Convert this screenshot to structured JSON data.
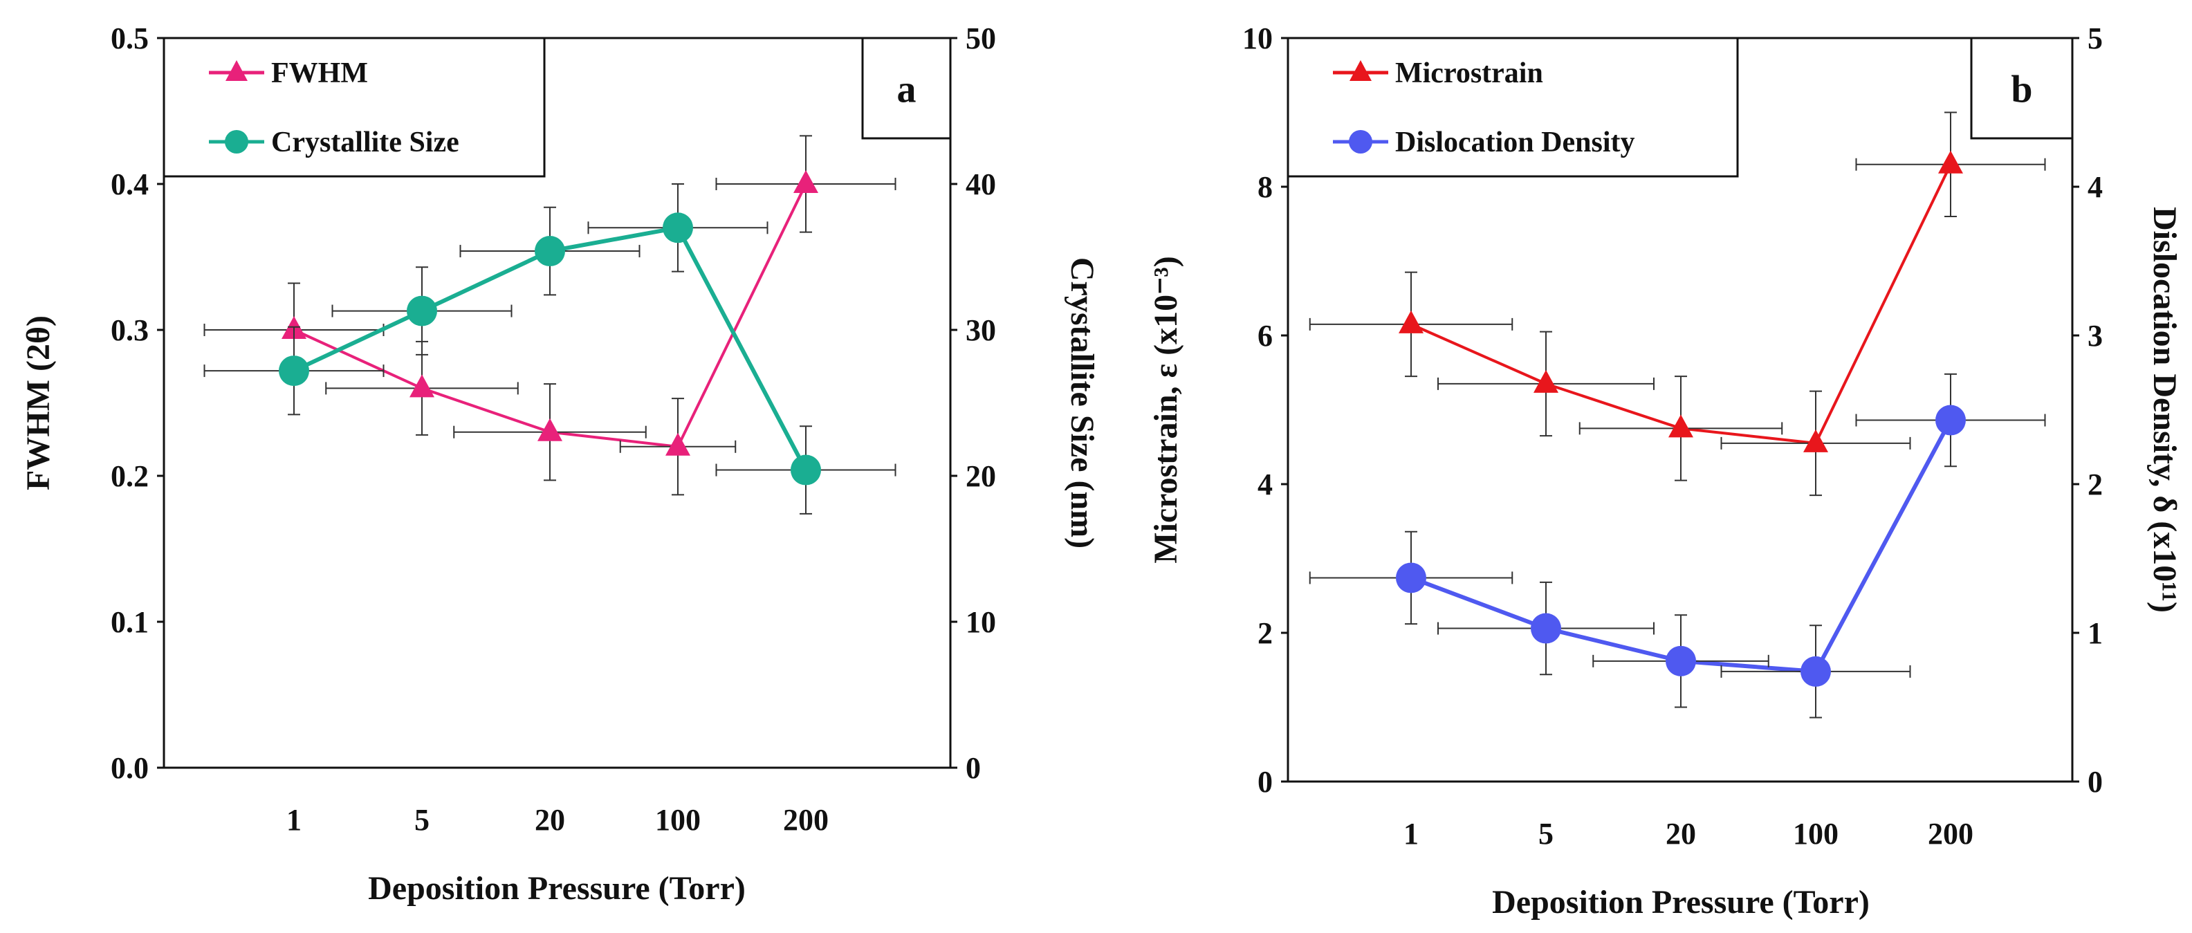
{
  "chart_data": [
    {
      "type": "line",
      "panel_label": "a",
      "categories": [
        "1",
        "5",
        "20",
        "100",
        "200"
      ],
      "xlabel": "Deposition Pressure (Torr)",
      "ylabel_left": "FWHM (2θ)",
      "ylabel_right": "Crystallite Size (nm)",
      "ylim_left": [
        0,
        0.5
      ],
      "ylim_right": [
        0,
        50
      ],
      "yticks_left": [
        "0.0",
        "0.1",
        "0.2",
        "0.3",
        "0.4",
        "0.5"
      ],
      "yticks_right": [
        "0",
        "10",
        "20",
        "30",
        "40",
        "50"
      ],
      "legend_position": "top-left",
      "series": [
        {
          "name": "FWHM",
          "axis": "left",
          "marker": "triangle",
          "color": "#e8217a",
          "values": [
            0.3,
            0.26,
            0.23,
            0.22,
            0.4
          ],
          "y_err": [
            0.032,
            0.032,
            0.033,
            0.033,
            0.033
          ],
          "x_err": [
            0.7,
            0.75,
            0.75,
            0.45,
            0.7
          ]
        },
        {
          "name": "Crystallite Size",
          "axis": "right",
          "marker": "circle",
          "color": "#1aae92",
          "values": [
            27.2,
            31.3,
            35.4,
            37.0,
            20.4
          ],
          "y_err": [
            3.0,
            3.0,
            3.0,
            3.0,
            3.0
          ],
          "x_err": [
            0.7,
            0.7,
            0.7,
            0.7,
            0.7
          ]
        }
      ]
    },
    {
      "type": "line",
      "panel_label": "b",
      "categories": [
        "1",
        "5",
        "20",
        "100",
        "200"
      ],
      "xlabel": "Deposition Pressure (Torr)",
      "ylabel_left": "Microstrain, ε (x10⁻³)",
      "ylabel_right": "Dislocation Density, δ (x10¹¹)",
      "ylim_left": [
        0,
        10
      ],
      "ylim_right": [
        0,
        5
      ],
      "yticks_left": [
        "0",
        "2",
        "4",
        "6",
        "8",
        "10"
      ],
      "yticks_right": [
        "0",
        "1",
        "2",
        "3",
        "4",
        "5"
      ],
      "legend_position": "top-left",
      "series": [
        {
          "name": "Microstrain",
          "axis": "left",
          "marker": "triangle",
          "color": "#e8161c",
          "values": [
            6.15,
            5.35,
            4.75,
            4.55,
            8.3
          ],
          "y_err": [
            0.7,
            0.7,
            0.7,
            0.7,
            0.7
          ],
          "x_err": [
            0.75,
            0.8,
            0.75,
            0.7,
            0.7
          ]
        },
        {
          "name": "Dislocation Density",
          "axis": "right",
          "marker": "circle",
          "color": "#4f59f0",
          "values": [
            1.37,
            1.03,
            0.81,
            0.74,
            2.43
          ],
          "y_err": [
            0.31,
            0.31,
            0.31,
            0.31,
            0.31
          ],
          "x_err": [
            0.75,
            0.8,
            0.65,
            0.7,
            0.7
          ]
        }
      ]
    }
  ]
}
